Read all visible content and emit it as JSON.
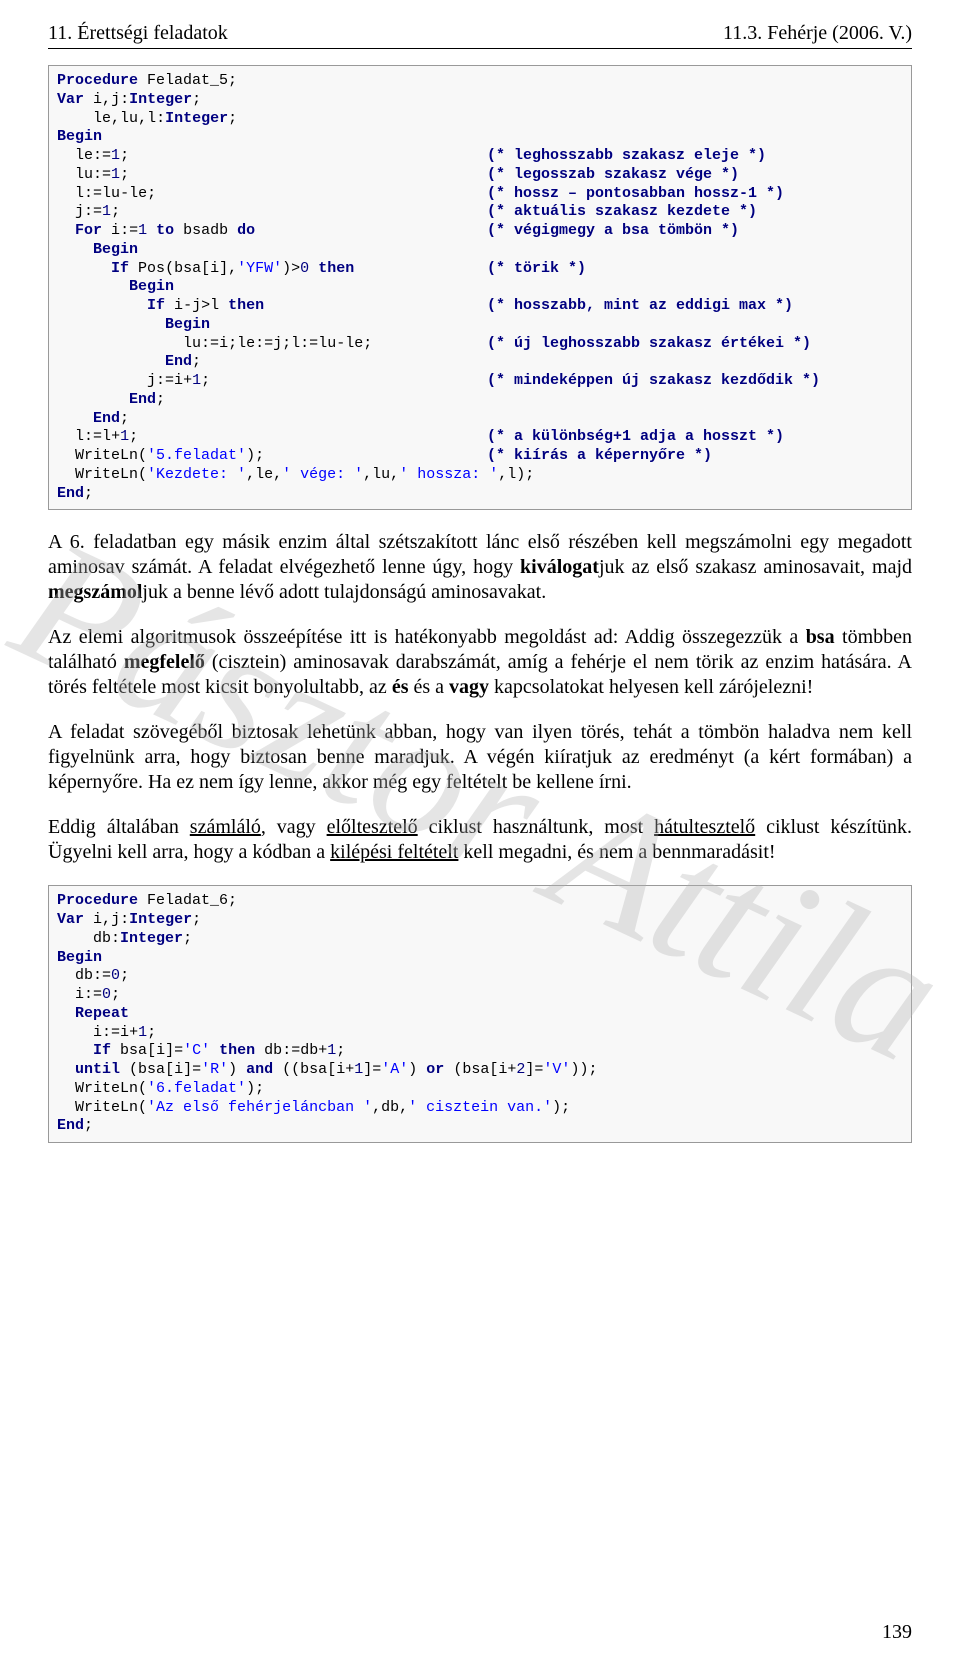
{
  "header": {
    "left": "11. Érettségi feladatok",
    "right": "11.3. Fehérje (2006. V.)"
  },
  "watermark": "Pásztor Attila",
  "page_number": "139",
  "code1": {
    "background": "#f8f8f8",
    "border_color": "#999999",
    "font": "Lucida Console",
    "kw_color": "#000080",
    "str_color": "#0000ff",
    "cmt_color": "#000080",
    "lines": [
      {
        "code": "Procedure Feladat_5;",
        "comment": ""
      },
      {
        "code": "Var i,j:Integer;",
        "comment": ""
      },
      {
        "code": "    le,lu,l:Integer;",
        "comment": ""
      },
      {
        "code": "Begin",
        "comment": ""
      },
      {
        "code": "  le:=1;",
        "comment": "(* leghosszabb szakasz eleje *)"
      },
      {
        "code": "  lu:=1;",
        "comment": "(* legosszab szakasz vége *)"
      },
      {
        "code": "  l:=lu-le;",
        "comment": "(* hossz – pontosabban hossz-1 *)"
      },
      {
        "code": "  j:=1;",
        "comment": "(* aktuális szakasz kezdete *)"
      },
      {
        "code": "  For i:=1 to bsadb do",
        "comment": "(* végigmegy a bsa tömbön *)"
      },
      {
        "code": "    Begin",
        "comment": ""
      },
      {
        "code": "      If Pos(bsa[i],'YFW')>0 then",
        "comment": "(* törik *)"
      },
      {
        "code": "        Begin",
        "comment": ""
      },
      {
        "code": "          If i-j>l then",
        "comment": "(* hosszabb, mint az eddigi max *)"
      },
      {
        "code": "            Begin",
        "comment": ""
      },
      {
        "code": "              lu:=i;le:=j;l:=lu-le;",
        "comment": "(* új leghosszabb szakasz értékei *)"
      },
      {
        "code": "            End;",
        "comment": ""
      },
      {
        "code": "          j:=i+1;",
        "comment": "(* mindeképpen új szakasz kezdődik *)"
      },
      {
        "code": "        End;",
        "comment": ""
      },
      {
        "code": "    End;",
        "comment": ""
      },
      {
        "code": "  l:=l+1;",
        "comment": "(* a különbség+1 adja a hosszt *)"
      },
      {
        "code": "  WriteLn('5.feladat');",
        "comment": "(* kiírás a képernyőre *)"
      },
      {
        "code": "  WriteLn('Kezdete: ',le,' vége: ',lu,' hossza: ',l);",
        "comment": ""
      },
      {
        "code": "End;",
        "comment": ""
      }
    ]
  },
  "para1": {
    "pre": "A 6. feladatban egy másik enzim által szétszakított lánc első részében kell megszámolni egy megadott aminosav számát. A feladat elvégezhető lenne úgy, hogy ",
    "b1": "kiválogat",
    "mid1": "juk az első szakasz aminosavait, majd ",
    "b2": "megszámol",
    "post": "juk a benne lévő adott tulajdonságú aminosavakat."
  },
  "para2": {
    "pre": "Az elemi algoritmusok összeépítése itt is hatékonyabb megoldást ad: Addig összegezzük a ",
    "b1": "bsa",
    "mid1": " tömbben található ",
    "b2": "megfelelő",
    "mid2": " (cisztein) aminosavak darabszámát, amíg a fehérje el nem törik az enzim hatására. A törés feltétele most kicsit bonyolultabb, az ",
    "b3": "és",
    "mid3": " és a ",
    "b4": "vagy",
    "post": " kapcsolatokat helyesen kell zárójelezni!"
  },
  "para3": "A feladat szövegéből biztosak lehetünk abban, hogy van ilyen törés, tehát a tömbön haladva nem kell figyelnünk arra, hogy biztosan benne maradjuk. A végén kiíratjuk az eredményt (a kért formában) a képernyőre. Ha ez nem így lenne, akkor még egy feltételt be kellene írni.",
  "para4": {
    "pre": "Eddig általában ",
    "u1": "számláló",
    "mid1": ", vagy ",
    "u2": "előltesztelő",
    "mid2": " ciklust használtunk, most ",
    "u3": "hátultesztelő",
    "mid3": " ciklust készítünk. Ügyelni kell arra, hogy a kódban a ",
    "u4": "kilépési feltételt",
    "post": " kell megadni, és nem a bennmaradásit!"
  },
  "code2": {
    "background": "#f8f8f8",
    "border_color": "#999999",
    "lines": [
      "Procedure Feladat_6;",
      "Var i,j:Integer;",
      "    db:Integer;",
      "Begin",
      "  db:=0;",
      "  i:=0;",
      "  Repeat",
      "    i:=i+1;",
      "    If bsa[i]='C' then db:=db+1;",
      "  until (bsa[i]='R') and ((bsa[i+1]='A') or (bsa[i+2]='V'));",
      "",
      "  WriteLn('6.feladat');",
      "  WriteLn('Az első fehérjeláncban ',db,' cisztein van.');",
      "End;"
    ]
  }
}
